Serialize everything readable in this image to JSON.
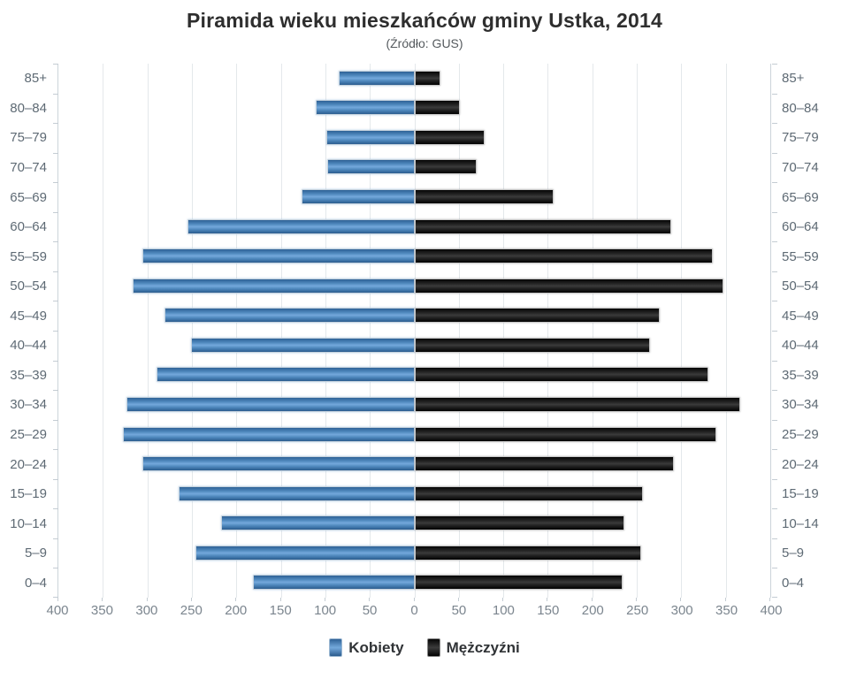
{
  "title": "Piramida wieku mieszkańców gminy Ustka, 2014",
  "subtitle": "(Źródło: GUS)",
  "legend": {
    "women": "Kobiety",
    "men": "Mężczyźni"
  },
  "colors": {
    "women_bar": "#4d86bb",
    "men_bar": "#1a1a1a",
    "category_label": "#5e6a74",
    "axis_label": "#7b858e",
    "gridline": "#e4e8eb",
    "axis_line": "#ccd4da"
  },
  "chart_data": {
    "type": "bar",
    "variant": "population-pyramid",
    "title": "Piramida wieku mieszkańców gminy Ustka, 2014",
    "subtitle": "(Źródło: GUS)",
    "categories": [
      "85+",
      "80–84",
      "75–79",
      "70–74",
      "65–69",
      "60–64",
      "55–59",
      "50–54",
      "45–49",
      "40–44",
      "35–39",
      "30–34",
      "25–29",
      "20–24",
      "15–19",
      "10–14",
      "5–9",
      "0–4"
    ],
    "series": [
      {
        "name": "Kobiety",
        "side": "left",
        "values": [
          85,
          111,
          99,
          98,
          127,
          255,
          306,
          317,
          281,
          251,
          290,
          323,
          327,
          306,
          265,
          217,
          246,
          181
        ]
      },
      {
        "name": "Mężczyźni",
        "side": "right",
        "values": [
          29,
          51,
          79,
          70,
          157,
          289,
          335,
          347,
          276,
          265,
          330,
          366,
          339,
          292,
          257,
          236,
          255,
          234
        ]
      }
    ],
    "axis_max": 400,
    "tick_interval": 50,
    "x_tick_labels": [
      "400",
      "350",
      "300",
      "250",
      "200",
      "150",
      "100",
      "50",
      "0",
      "50",
      "100",
      "150",
      "200",
      "250",
      "300",
      "350",
      "400"
    ],
    "grid": true,
    "legend_position": "bottom",
    "category_labels_position": "both-sides"
  }
}
